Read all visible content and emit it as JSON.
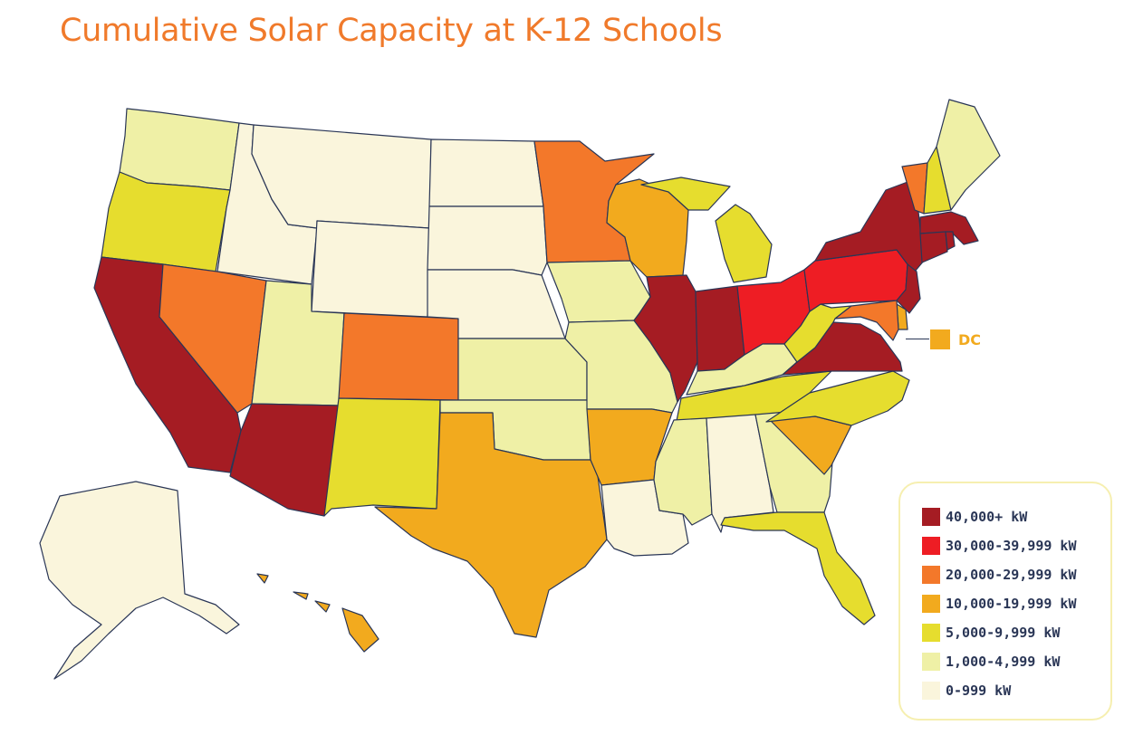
{
  "title": "Cumulative Solar Capacity at K-12 Schools",
  "colors": {
    "title": "#f07a2b",
    "text": "#2a3656",
    "c40k": "#a51c23",
    "c30k": "#ee1d24",
    "c20k": "#f3782a",
    "c10k": "#f2aa1e",
    "c5k": "#e6dd2e",
    "c1k": "#eff0a6",
    "c0": "#faf5dc"
  },
  "dc": {
    "label": "DC",
    "category": "c10k"
  },
  "legend": [
    {
      "key": "c40k",
      "label": "40,000+ kW"
    },
    {
      "key": "c30k",
      "label": "30,000-39,999 kW"
    },
    {
      "key": "c20k",
      "label": "20,000-29,999 kW"
    },
    {
      "key": "c10k",
      "label": "10,000-19,999 kW"
    },
    {
      "key": "c5k",
      "label": "5,000-9,999 kW"
    },
    {
      "key": "c1k",
      "label": "1,000-4,999 kW"
    },
    {
      "key": "c0",
      "label": "0-999 kW"
    }
  ],
  "states": {
    "WA": "c1k",
    "OR": "c5k",
    "CA": "c40k",
    "ID": "c0",
    "NV": "c20k",
    "MT": "c0",
    "WY": "c0",
    "UT": "c1k",
    "AZ": "c40k",
    "CO": "c20k",
    "NM": "c5k",
    "ND": "c0",
    "SD": "c0",
    "NE": "c0",
    "KS": "c1k",
    "OK": "c1k",
    "TX": "c10k",
    "MN": "c20k",
    "IA": "c1k",
    "MO": "c1k",
    "AR": "c10k",
    "LA": "c0",
    "WI": "c10k",
    "IL": "c40k",
    "MI": "c5k",
    "IN": "c40k",
    "OH": "c30k",
    "KY": "c1k",
    "TN": "c5k",
    "MS": "c1k",
    "AL": "c0",
    "GA": "c1k",
    "FL": "c5k",
    "SC": "c10k",
    "NC": "c5k",
    "VA": "c40k",
    "WV": "c5k",
    "PA": "c30k",
    "NY": "c40k",
    "NJ": "c40k",
    "DE": "c10k",
    "MD": "c20k",
    "VT": "c20k",
    "NH": "c5k",
    "ME": "c1k",
    "MA": "c40k",
    "CT": "c40k",
    "RI": "c40k",
    "AK": "c0",
    "HI": "c10k"
  }
}
